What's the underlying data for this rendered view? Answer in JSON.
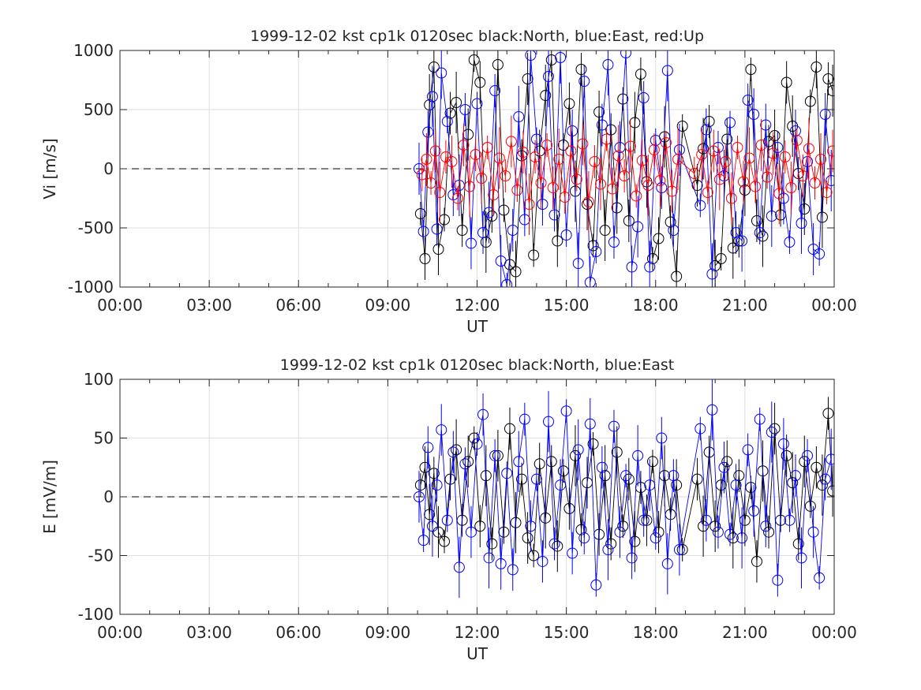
{
  "chart_data": [
    {
      "type": "scatter",
      "title": "1999-12-02 kst cp1k 0120sec black:North, blue:East, red:Up",
      "xlabel": "UT",
      "ylabel": "Vi [m/s]",
      "xlim": [
        0,
        24
      ],
      "ylim": [
        -1000,
        1000
      ],
      "x_tick_values": [
        0,
        3,
        6,
        9,
        12,
        15,
        18,
        21,
        24
      ],
      "x_tick_labels": [
        "00:00",
        "03:00",
        "06:00",
        "09:00",
        "12:00",
        "15:00",
        "18:00",
        "21:00",
        "00:00"
      ],
      "y_tick_values": [
        -1000,
        -500,
        0,
        500,
        1000
      ],
      "y_tick_labels": [
        "-1000",
        "-500",
        "0",
        "500",
        "1000"
      ],
      "grid": true,
      "reference_line": {
        "y": 0,
        "style": "dashed",
        "x_range": [
          0,
          10.2
        ]
      },
      "series": [
        {
          "name": "North",
          "color": "#000000",
          "x": [
            10.1,
            10.25,
            10.4,
            10.55,
            10.7,
            10.9,
            11.1,
            11.3,
            11.5,
            11.7,
            11.9,
            12.1,
            12.3,
            12.5,
            12.7,
            12.9,
            13.1,
            13.3,
            13.5,
            13.7,
            13.9,
            14.1,
            14.3,
            14.5,
            14.7,
            14.9,
            15.1,
            15.3,
            15.5,
            15.7,
            15.9,
            16.1,
            16.3,
            16.5,
            16.7,
            16.9,
            17.1,
            17.3,
            17.5,
            17.7,
            17.9,
            18.1,
            18.3,
            18.5,
            18.7,
            18.9,
            19.4,
            19.6,
            19.8,
            20.0,
            20.2,
            20.4,
            20.6,
            20.8,
            21.0,
            21.2,
            21.4,
            21.6,
            21.8,
            22.0,
            22.2,
            22.4,
            22.6,
            22.8,
            23.0,
            23.2,
            23.4,
            23.6,
            23.8,
            23.95
          ],
          "y": [
            -380,
            -760,
            540,
            860,
            -680,
            -430,
            470,
            560,
            -520,
            290,
            920,
            730,
            -620,
            -400,
            880,
            -350,
            -810,
            -870,
            110,
            760,
            -730,
            150,
            620,
            920,
            -610,
            200,
            550,
            -190,
            840,
            -300,
            -650,
            480,
            -520,
            330,
            -330,
            590,
            -440,
            390,
            800,
            -110,
            -760,
            -590,
            270,
            -450,
            -910,
            360,
            -140,
            170,
            400,
            -820,
            -760,
            250,
            -670,
            -610,
            -180,
            840,
            -440,
            -570,
            230,
            280,
            -390,
            730,
            360,
            -40,
            -340,
            570,
            860,
            -410,
            760,
            660
          ]
        },
        {
          "name": "East",
          "color": "#0000ff",
          "x": [
            10.05,
            10.2,
            10.35,
            10.5,
            10.65,
            10.8,
            11.0,
            11.2,
            11.4,
            11.6,
            11.8,
            12.0,
            12.2,
            12.4,
            12.6,
            12.8,
            13.0,
            13.2,
            13.4,
            13.6,
            13.8,
            14.0,
            14.2,
            14.4,
            14.6,
            14.8,
            15.0,
            15.2,
            15.4,
            15.6,
            15.8,
            16.0,
            16.2,
            16.4,
            16.6,
            16.8,
            17.0,
            17.2,
            17.4,
            17.6,
            17.8,
            18.0,
            18.2,
            18.4,
            18.6,
            18.8,
            19.5,
            19.7,
            19.9,
            20.1,
            20.3,
            20.5,
            20.7,
            20.9,
            21.1,
            21.3,
            21.5,
            21.7,
            21.9,
            22.1,
            22.3,
            22.5,
            22.7,
            22.9,
            23.1,
            23.3,
            23.5,
            23.7,
            23.9
          ],
          "y": [
            0,
            -530,
            310,
            610,
            -510,
            810,
            400,
            -220,
            -140,
            500,
            -630,
            550,
            -540,
            -370,
            660,
            -780,
            -980,
            -520,
            440,
            -430,
            960,
            250,
            -300,
            780,
            -390,
            940,
            -560,
            320,
            -800,
            740,
            -960,
            -700,
            370,
            880,
            -620,
            180,
            980,
            -830,
            -490,
            600,
            -830,
            240,
            -160,
            830,
            -520,
            160,
            -310,
            330,
            -890,
            180,
            -60,
            390,
            -540,
            -610,
            580,
            460,
            -540,
            370,
            -400,
            180,
            -250,
            -620,
            320,
            -460,
            60,
            -680,
            -720,
            460,
            -100
          ]
        },
        {
          "name": "Up",
          "color": "#ff0000",
          "x": [
            10.15,
            10.3,
            10.45,
            10.6,
            10.75,
            10.95,
            11.15,
            11.35,
            11.55,
            11.75,
            11.95,
            12.15,
            12.35,
            12.55,
            12.75,
            12.95,
            13.15,
            13.35,
            13.55,
            13.75,
            13.95,
            14.15,
            14.35,
            14.55,
            14.75,
            14.95,
            15.15,
            15.35,
            15.55,
            15.75,
            15.95,
            16.15,
            16.35,
            16.55,
            16.75,
            16.95,
            17.15,
            17.35,
            17.55,
            17.75,
            17.95,
            18.15,
            18.35,
            18.55,
            18.75,
            19.3,
            19.55,
            19.75,
            19.95,
            20.15,
            20.35,
            20.55,
            20.75,
            20.95,
            21.15,
            21.35,
            21.55,
            21.75,
            21.95,
            22.15,
            22.35,
            22.55,
            22.75,
            22.95,
            23.15,
            23.35,
            23.55,
            23.75,
            23.95
          ],
          "y": [
            -50,
            80,
            -120,
            150,
            -200,
            100,
            60,
            -250,
            200,
            -150,
            120,
            -80,
            180,
            -220,
            90,
            -60,
            230,
            -180,
            140,
            -300,
            100,
            -120,
            200,
            -160,
            80,
            -240,
            150,
            -90,
            210,
            -280,
            60,
            -130,
            250,
            -170,
            110,
            -60,
            190,
            -230,
            70,
            -140,
            160,
            -100,
            220,
            -190,
            80,
            -40,
            120,
            -200,
            150,
            -90,
            60,
            -250,
            180,
            -110,
            90,
            -150,
            200,
            -70,
            130,
            -210,
            100,
            -160,
            240,
            -60,
            170,
            -120,
            80,
            -200,
            150
          ]
        }
      ]
    },
    {
      "type": "scatter",
      "title": "1999-12-02 kst cp1k 0120sec black:North, blue:East",
      "xlabel": "UT",
      "ylabel": "E [mV/m]",
      "xlim": [
        0,
        24
      ],
      "ylim": [
        -100,
        100
      ],
      "x_tick_values": [
        0,
        3,
        6,
        9,
        12,
        15,
        18,
        21,
        24
      ],
      "x_tick_labels": [
        "00:00",
        "03:00",
        "06:00",
        "09:00",
        "12:00",
        "15:00",
        "18:00",
        "21:00",
        "00:00"
      ],
      "y_tick_values": [
        -100,
        -50,
        0,
        50,
        100
      ],
      "y_tick_labels": [
        "-100",
        "-50",
        "0",
        "50",
        "100"
      ],
      "grid": true,
      "reference_line": {
        "y": 0,
        "style": "dashed",
        "x_range": [
          0,
          10.2
        ]
      },
      "series": [
        {
          "name": "North",
          "color": "#000000",
          "x": [
            10.1,
            10.25,
            10.4,
            10.55,
            10.7,
            10.9,
            11.1,
            11.3,
            11.5,
            11.7,
            11.9,
            12.1,
            12.3,
            12.5,
            12.7,
            12.9,
            13.1,
            13.3,
            13.5,
            13.7,
            13.9,
            14.1,
            14.3,
            14.5,
            14.7,
            14.9,
            15.1,
            15.3,
            15.5,
            15.7,
            15.9,
            16.1,
            16.3,
            16.5,
            16.7,
            16.9,
            17.1,
            17.3,
            17.5,
            17.7,
            17.9,
            18.1,
            18.3,
            18.5,
            18.7,
            18.9,
            19.4,
            19.6,
            19.8,
            20.0,
            20.2,
            20.4,
            20.6,
            20.8,
            21.0,
            21.2,
            21.4,
            21.6,
            21.8,
            22.0,
            22.2,
            22.4,
            22.6,
            22.8,
            23.0,
            23.2,
            23.4,
            23.6,
            23.8,
            23.95
          ],
          "y": [
            10,
            25,
            -15,
            20,
            -30,
            -38,
            15,
            40,
            -20,
            30,
            50,
            -25,
            18,
            -40,
            35,
            -30,
            58,
            -22,
            15,
            -35,
            -50,
            28,
            -18,
            30,
            -42,
            22,
            -10,
            35,
            -28,
            12,
            45,
            -32,
            18,
            -40,
            38,
            -25,
            15,
            -38,
            8,
            -20,
            30,
            -30,
            18,
            -15,
            10,
            -45,
            15,
            -25,
            38,
            -25,
            10,
            30,
            -35,
            18,
            -20,
            8,
            -55,
            22,
            -30,
            58,
            -20,
            35,
            12,
            -40,
            30,
            -8,
            25,
            10,
            71,
            5
          ]
        },
        {
          "name": "East",
          "color": "#0000ff",
          "x": [
            10.05,
            10.2,
            10.35,
            10.5,
            10.65,
            10.8,
            11.0,
            11.2,
            11.4,
            11.6,
            11.8,
            12.0,
            12.2,
            12.4,
            12.6,
            12.8,
            13.0,
            13.2,
            13.4,
            13.6,
            13.8,
            14.0,
            14.2,
            14.4,
            14.6,
            14.8,
            15.0,
            15.2,
            15.4,
            15.6,
            15.8,
            16.0,
            16.2,
            16.4,
            16.6,
            16.8,
            17.0,
            17.2,
            17.4,
            17.6,
            17.8,
            18.0,
            18.2,
            18.4,
            18.6,
            18.8,
            19.5,
            19.7,
            19.9,
            20.1,
            20.3,
            20.5,
            20.7,
            20.9,
            21.1,
            21.3,
            21.5,
            21.7,
            21.9,
            22.1,
            22.3,
            22.5,
            22.7,
            22.9,
            23.1,
            23.3,
            23.5,
            23.7,
            23.9
          ],
          "y": [
            0,
            -37,
            42,
            -25,
            10,
            57,
            -20,
            38,
            -60,
            28,
            -30,
            45,
            70,
            -52,
            35,
            -57,
            20,
            -62,
            30,
            66,
            -25,
            15,
            -55,
            64,
            -40,
            10,
            73,
            -48,
            40,
            -35,
            62,
            -75,
            25,
            -45,
            60,
            -30,
            18,
            -52,
            35,
            -20,
            10,
            -35,
            50,
            -57,
            18,
            -45,
            58,
            -20,
            74,
            -30,
            25,
            -32,
            10,
            -35,
            40,
            -12,
            66,
            -25,
            55,
            -71,
            45,
            -20,
            18,
            -52,
            35,
            -30,
            -69,
            15,
            32
          ]
        }
      ]
    }
  ]
}
